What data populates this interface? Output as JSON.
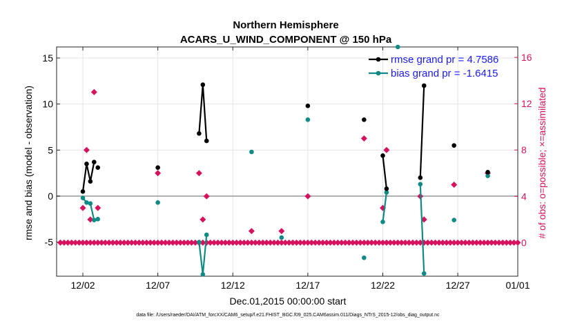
{
  "chart_data": {
    "type": "line",
    "title": [
      "Northern Hemisphere",
      "ACARS_U_WIND_COMPONENT @ 150 hPa"
    ],
    "xlabel": "Dec.01,2015 00:00:00 start",
    "ylabel": "rmse and bias (model - observation)",
    "ylabel_right": "# of obs: o=possible; ×=assimilated",
    "footer": "data file: /Users/raeder/DAI/ATM_forcXX/CAM6_setup/f.e21.FHIST_BGC.f09_025.CAM6assim.011/Diags_NTrS_2015-12/obs_diag_output.nc",
    "xlim": [
      0.25,
      31.0
    ],
    "ylim": [
      -8.7,
      16.2
    ],
    "ylim_right": [
      -2.9,
      16.9
    ],
    "x_ticks": [
      {
        "value": 2,
        "label": "12/02"
      },
      {
        "value": 7,
        "label": "12/07"
      },
      {
        "value": 12,
        "label": "12/12"
      },
      {
        "value": 17,
        "label": "12/17"
      },
      {
        "value": 22,
        "label": "12/22"
      },
      {
        "value": 27,
        "label": "12/27"
      },
      {
        "value": 31,
        "label": "01/01"
      }
    ],
    "y_ticks": [
      {
        "value": -5,
        "label": "-5"
      },
      {
        "value": 0,
        "label": "0"
      },
      {
        "value": 5,
        "label": "5"
      },
      {
        "value": 10,
        "label": "10"
      },
      {
        "value": 15,
        "label": "15"
      }
    ],
    "y_ticks_right": [
      {
        "value": 0,
        "label": "0"
      },
      {
        "value": 4,
        "label": "4"
      },
      {
        "value": 8,
        "label": "8"
      },
      {
        "value": 12,
        "label": "12"
      },
      {
        "value": 16,
        "label": "16"
      }
    ],
    "legend": {
      "position": "top-right",
      "entries": [
        {
          "label": "rmse grand pr = 4.7586",
          "color": "#000000"
        },
        {
          "label": "bias grand pr = -1.6415",
          "color": "#0f8a85"
        }
      ]
    },
    "colors": {
      "rmse": "#000000",
      "bias": "#0f8a85",
      "obs": "#d6125f",
      "text_blue": "#1a1aff",
      "zero_line": "#b0b0b0"
    },
    "series": [
      {
        "name": "rmse",
        "segments": [
          [
            [
              2.0,
              0.5
            ],
            [
              2.25,
              3.5
            ],
            [
              2.5,
              1.6
            ],
            [
              2.75,
              3.7
            ]
          ],
          [
            [
              9.75,
              6.8
            ],
            [
              10.0,
              12.1
            ],
            [
              10.25,
              6.0
            ]
          ],
          [
            [
              22.0,
              4.4
            ],
            [
              22.25,
              0.8
            ]
          ],
          [
            [
              24.5,
              2.0
            ],
            [
              24.75,
              12.0
            ]
          ]
        ],
        "points": [
          [
            3.0,
            3.1
          ],
          [
            7.0,
            3.1
          ],
          [
            17.0,
            9.8
          ],
          [
            20.75,
            8.3
          ],
          [
            26.75,
            5.5
          ],
          [
            29.0,
            2.6
          ]
        ]
      },
      {
        "name": "bias",
        "segments": [
          [
            [
              2.0,
              -0.2
            ],
            [
              2.25,
              -0.7
            ],
            [
              2.5,
              -0.8
            ],
            [
              2.75,
              -2.6
            ],
            [
              3.0,
              -2.5
            ]
          ],
          [
            [
              9.75,
              -5.0
            ],
            [
              10.0,
              -8.5
            ],
            [
              10.25,
              -4.2
            ]
          ],
          [
            [
              22.0,
              -2.8
            ],
            [
              22.25,
              0.4
            ]
          ],
          [
            [
              24.5,
              1.3
            ],
            [
              24.75,
              -8.4
            ]
          ]
        ],
        "points": [
          [
            7.0,
            -0.7
          ],
          [
            13.25,
            4.8
          ],
          [
            15.25,
            -4.5
          ],
          [
            17.0,
            8.3
          ],
          [
            20.75,
            -6.7
          ],
          [
            23.0,
            16.2
          ],
          [
            26.75,
            -2.6
          ],
          [
            29.0,
            2.2
          ]
        ]
      },
      {
        "name": "obs_possible_count",
        "axis": "right",
        "points": [
          [
            2.0,
            3.0
          ],
          [
            2.25,
            8.0
          ],
          [
            2.5,
            2.0
          ],
          [
            2.75,
            13.0
          ],
          [
            3.0,
            3.0
          ],
          [
            7.0,
            6.0
          ],
          [
            9.75,
            6.0
          ],
          [
            10.0,
            2.0
          ],
          [
            10.25,
            4.0
          ],
          [
            13.25,
            1.0
          ],
          [
            15.25,
            1.0
          ],
          [
            17.0,
            4.0
          ],
          [
            20.75,
            9.0
          ],
          [
            22.0,
            3.0
          ],
          [
            22.25,
            8.0
          ],
          [
            24.5,
            4.0
          ],
          [
            24.75,
            2.0
          ],
          [
            26.75,
            5.0
          ],
          [
            29.0,
            6.0
          ]
        ]
      },
      {
        "name": "obs_assimilated_count",
        "axis": "right",
        "x_start": 0.5,
        "x_step": 0.25,
        "x_end": 31.0,
        "value": 0
      }
    ]
  }
}
